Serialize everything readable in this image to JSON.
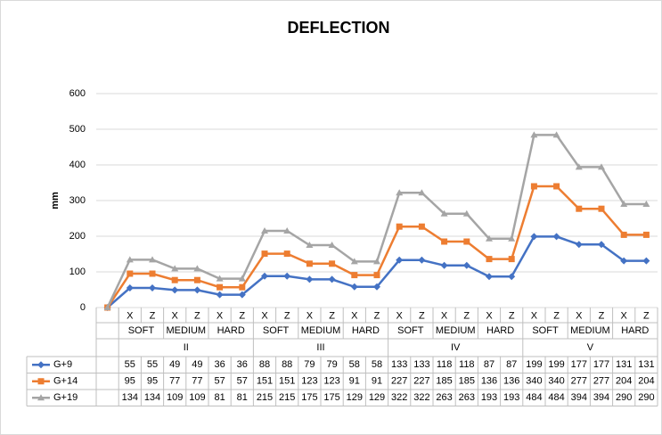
{
  "chart_data": {
    "type": "line",
    "title": "DEFLECTION",
    "y_label": "mm",
    "categories": [
      null,
      "X",
      "Z",
      "X",
      "Z",
      "X",
      "Z",
      "X",
      "Z",
      "X",
      "Z",
      "X",
      "Z",
      "X",
      "Z",
      "X",
      "Z",
      "X",
      "Z",
      "X",
      "Z",
      "X",
      "Z",
      "X",
      "Z"
    ],
    "category_groups": [
      {
        "name": "II",
        "subgroups": [
          "SOFT",
          "MEDIUM",
          "HARD"
        ]
      },
      {
        "name": "III",
        "subgroups": [
          "SOFT",
          "MEDIUM",
          "HARD"
        ]
      },
      {
        "name": "IV",
        "subgroups": [
          "SOFT",
          "MEDIUM",
          "HARD"
        ]
      },
      {
        "name": "V",
        "subgroups": [
          "SOFT",
          "MEDIUM",
          "HARD"
        ]
      }
    ],
    "series": [
      {
        "name": "G+9",
        "color": "#4472c4",
        "marker": "diamond",
        "values": [
          0,
          55,
          55,
          49,
          49,
          36,
          36,
          88,
          88,
          79,
          79,
          58,
          58,
          133,
          133,
          118,
          118,
          87,
          87,
          199,
          199,
          177,
          177,
          131,
          131
        ]
      },
      {
        "name": "G+14",
        "color": "#ed7d31",
        "marker": "square",
        "values": [
          0,
          95,
          95,
          77,
          77,
          57,
          57,
          151,
          151,
          123,
          123,
          91,
          91,
          227,
          227,
          185,
          185,
          136,
          136,
          340,
          340,
          277,
          277,
          204,
          204
        ]
      },
      {
        "name": "G+19",
        "color": "#a5a5a5",
        "marker": "triangle",
        "values": [
          0,
          134,
          134,
          109,
          109,
          81,
          81,
          215,
          215,
          175,
          175,
          129,
          129,
          322,
          322,
          263,
          263,
          193,
          193,
          484,
          484,
          394,
          394,
          290,
          290
        ]
      }
    ],
    "ylim": [
      0,
      600
    ],
    "yticks": [
      0,
      100,
      200,
      300,
      400,
      500,
      600
    ],
    "grid": true
  }
}
